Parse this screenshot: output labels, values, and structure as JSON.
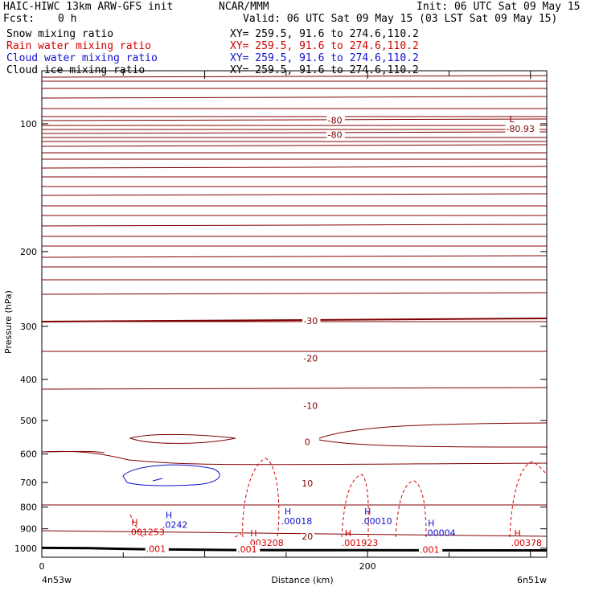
{
  "header": {
    "model": "HAIC-HIWC 13km ARW-GFS init",
    "org": "NCAR/MMM",
    "init": "Init: 06 UTC Sat 09 May 15",
    "fcst_label": "Fcst:",
    "fcst_value": "0 h",
    "valid": "Valid: 06 UTC Sat 09 May 15 (03 LST Sat 09 May 15)"
  },
  "fields": [
    {
      "name": "Snow mixing ratio",
      "xy": "XY= 259.5, 91.6 to 274.6,110.2",
      "color": "#000000"
    },
    {
      "name": "Rain water mixing ratio",
      "xy": "XY= 259.5, 91.6 to 274.6,110.2",
      "color": "#d40000"
    },
    {
      "name": "Cloud water mixing ratio",
      "xy": "XY= 259.5, 91.6 to 274.6,110.2",
      "color": "#1010d0"
    },
    {
      "name": "Cloud ice mixing ratio",
      "xy": "XY= 259.5, 91.6 to 274.6,110.2",
      "color": "#000000"
    }
  ],
  "chart_data": {
    "type": "line",
    "title": "",
    "xlabel": "Distance (km)",
    "ylabel": "Pressure (hPa)",
    "xlim": [
      0,
      310
    ],
    "ylim": [
      1050,
      75
    ],
    "y_scale": "log",
    "x_ticks": [
      "0",
      "200"
    ],
    "y_ticks": [
      "100",
      "200",
      "300",
      "400",
      "500",
      "600",
      "700",
      "800",
      "900",
      "1000"
    ],
    "x_ends": {
      "left": "4n53w",
      "right": "6n51w"
    },
    "colors": {
      "temperature": "#800000",
      "rain": "#d40000",
      "cloud": "#1010d0",
      "terrain": "#000000"
    },
    "terrain": [
      {
        "x": 0,
        "p": 998
      },
      {
        "x": 30,
        "p": 1000
      },
      {
        "x": 60,
        "p": 1005
      },
      {
        "x": 120,
        "p": 1010
      },
      {
        "x": 200,
        "p": 1011
      },
      {
        "x": 310,
        "p": 1012
      }
    ],
    "temperature_labels": [
      {
        "text": "-80",
        "x": 180,
        "p": 98
      },
      {
        "text": "-80",
        "x": 180,
        "p": 106
      },
      {
        "text": "-30",
        "x": 165,
        "p": 291
      },
      {
        "text": "-20",
        "x": 165,
        "p": 357
      },
      {
        "text": "-10",
        "x": 165,
        "p": 461
      },
      {
        "text": "0",
        "x": 163,
        "p": 562
      },
      {
        "text": "10",
        "x": 163,
        "p": 703
      },
      {
        "text": "20",
        "x": 163,
        "p": 938
      }
    ],
    "low_label": {
      "symbol": "L",
      "value": "-80.93",
      "x": 287,
      "p": 101
    },
    "cloud_maxima": [
      {
        "symbol": "H",
        "value": ".0242",
        "x": 75,
        "p": 880
      },
      {
        "symbol": "H",
        "value": ".00018",
        "x": 148,
        "p": 862
      },
      {
        "symbol": "H",
        "value": ".00010",
        "x": 197,
        "p": 862
      },
      {
        "symbol": "H",
        "value": ".00004",
        "x": 236,
        "p": 920
      }
    ],
    "rain_maxima": [
      {
        "symbol": "H",
        "value": ".001253",
        "x": 55,
        "p": 915
      },
      {
        "symbol": "H",
        "value": ".003208",
        "x": 128,
        "p": 970
      },
      {
        "symbol": "H",
        "value": ".001923",
        "x": 186,
        "p": 970
      },
      {
        "symbol": "H",
        "value": ".00378",
        "x": 290,
        "p": 970
      }
    ],
    "rain_low_labels": [
      {
        "text": ".001",
        "x": 64,
        "p": 1002
      },
      {
        "text": ".001",
        "x": 120,
        "p": 1005
      },
      {
        "text": ".001",
        "x": 232,
        "p": 1008
      }
    ]
  }
}
